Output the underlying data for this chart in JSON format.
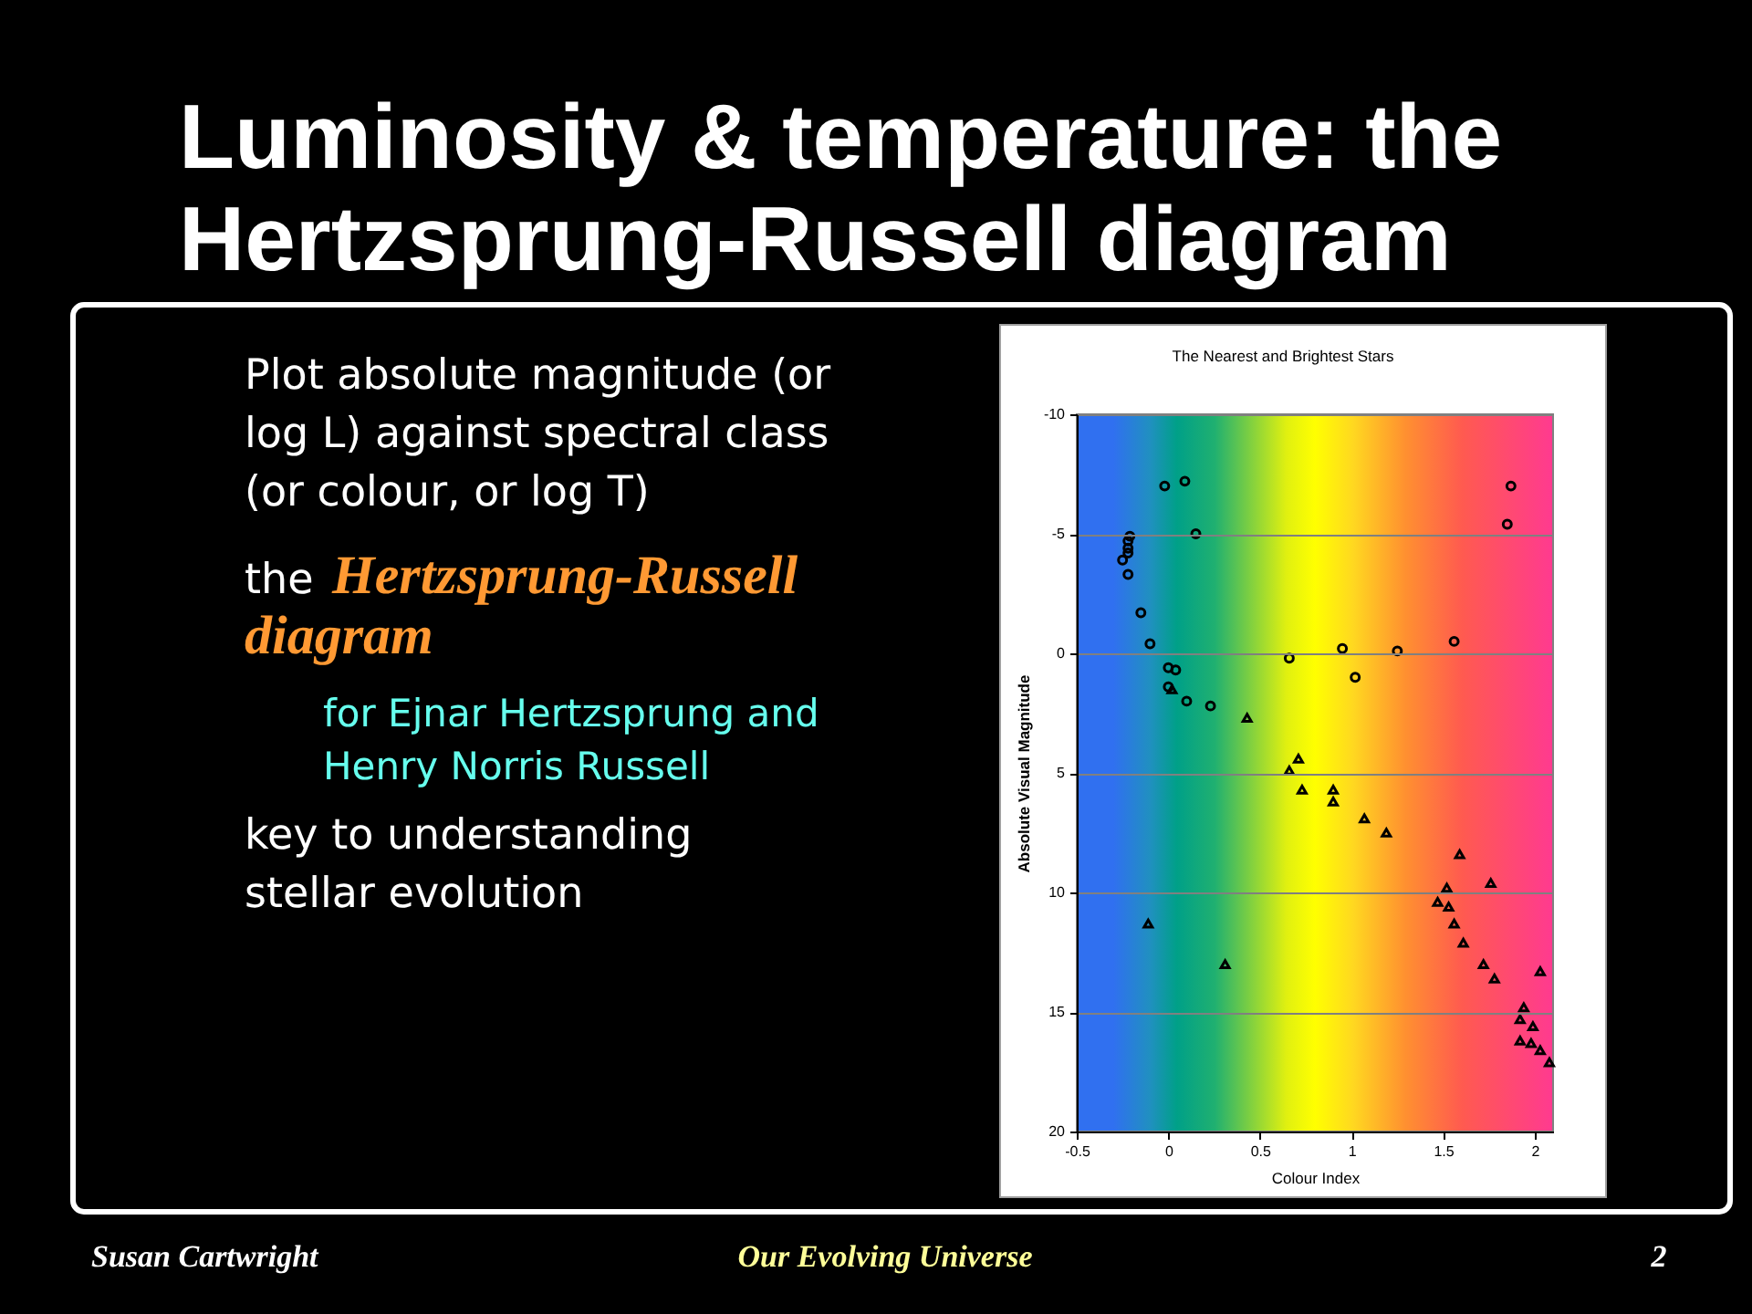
{
  "chart_data": [
    {
      "type": "other",
      "title": "Luminosity & temperature: the Hertzsprung-Russell diagram",
      "annotations": [
        "Plot absolute magnitude (or log L) against spectral class (or colour, or log T)",
        "the Hertzsprung-Russell diagram",
        "for Ejnar Hertzsprung and Henry Norris Russell",
        "key to understanding stellar evolution"
      ]
    },
    {
      "type": "scatter",
      "title": "The Nearest and Brightest Stars",
      "xlabel": "Colour Index",
      "ylabel": "Absolute Visual Magnitude",
      "xlim": [
        -0.5,
        2.1
      ],
      "xticks": [
        -0.5,
        0,
        0.5,
        1,
        1.5,
        2
      ],
      "ylim": [
        20,
        -10
      ],
      "yticks": [
        -10,
        -5,
        0,
        5,
        10,
        15,
        20
      ],
      "grid": "y",
      "series": [
        {
          "color": "#000000",
          "marker": "circle",
          "x": [
            -0.02,
            0.09,
            0.15,
            -0.21,
            -0.22,
            -0.22,
            -0.22,
            -0.25,
            -0.22,
            -0.15,
            -0.1,
            0.0,
            0.04,
            0.0,
            0.1,
            0.23,
            0.66,
            0.95,
            1.25,
            1.56,
            1.02,
            1.87,
            1.85
          ],
          "values": [
            -7.0,
            -7.2,
            -5.0,
            -4.9,
            -4.7,
            -4.4,
            -4.2,
            -3.9,
            -3.3,
            -1.7,
            -0.4,
            0.6,
            0.7,
            1.4,
            2.0,
            2.2,
            0.2,
            -0.2,
            -0.1,
            -0.5,
            1.0,
            -7.0,
            -5.4
          ]
        },
        {
          "color": "#000000",
          "marker": "triangle",
          "x": [
            0.02,
            0.43,
            0.71,
            0.66,
            0.73,
            -0.11,
            0.31,
            0.9,
            0.9,
            1.07,
            1.19,
            1.59,
            1.76,
            1.52,
            1.47,
            1.53,
            1.56,
            1.61,
            1.72,
            1.78,
            2.03,
            1.94,
            1.92,
            1.99,
            1.92,
            1.98,
            2.03,
            2.08
          ],
          "values": [
            1.5,
            2.7,
            4.4,
            4.9,
            5.7,
            11.3,
            13.0,
            5.7,
            6.2,
            6.9,
            7.5,
            8.4,
            9.6,
            9.8,
            10.4,
            10.6,
            11.3,
            12.1,
            13.0,
            13.6,
            13.3,
            14.8,
            15.3,
            15.6,
            16.2,
            16.3,
            16.6,
            17.1
          ]
        }
      ]
    },
    {
      "type": "other",
      "annotations": [
        "Susan Cartwright",
        "Our Evolving Universe",
        "2"
      ]
    }
  ]
}
